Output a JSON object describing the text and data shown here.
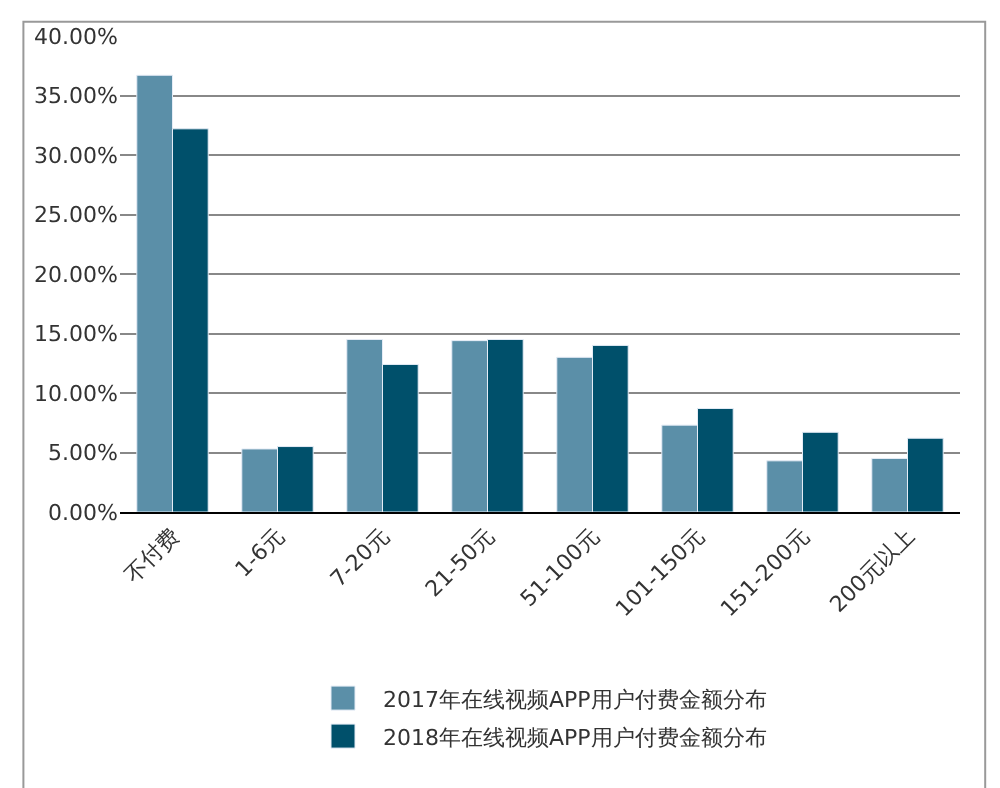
{
  "chart_data": {
    "type": "bar",
    "categories": [
      "不付费",
      "1-6元",
      "7-20元",
      "21-50元",
      "51-100元",
      "101-150元",
      "151-200元",
      "200元以上"
    ],
    "series": [
      {
        "name": "2017年在线视频APP用户付费金额分布",
        "color": "#5b8fa8",
        "values": [
          36.7,
          5.3,
          14.5,
          14.4,
          13.0,
          7.3,
          4.3,
          4.5
        ]
      },
      {
        "name": "2018年在线视频APP用户付费金额分布",
        "color": "#00506b",
        "values": [
          32.2,
          5.5,
          12.4,
          14.5,
          14.0,
          8.7,
          6.7,
          6.2
        ]
      }
    ],
    "ylim": [
      0,
      40
    ],
    "yticks": [
      {
        "value": 0,
        "label": "0.00%"
      },
      {
        "value": 5,
        "label": "5.00%"
      },
      {
        "value": 10,
        "label": "10.00%"
      },
      {
        "value": 15,
        "label": "15.00%"
      },
      {
        "value": 20,
        "label": "20.00%"
      },
      {
        "value": 25,
        "label": "25.00%"
      },
      {
        "value": 30,
        "label": "30.00%"
      },
      {
        "value": 35,
        "label": "35.00%"
      },
      {
        "value": 40,
        "label": "40.00%"
      }
    ],
    "grid": "y",
    "legend": "bottom"
  }
}
